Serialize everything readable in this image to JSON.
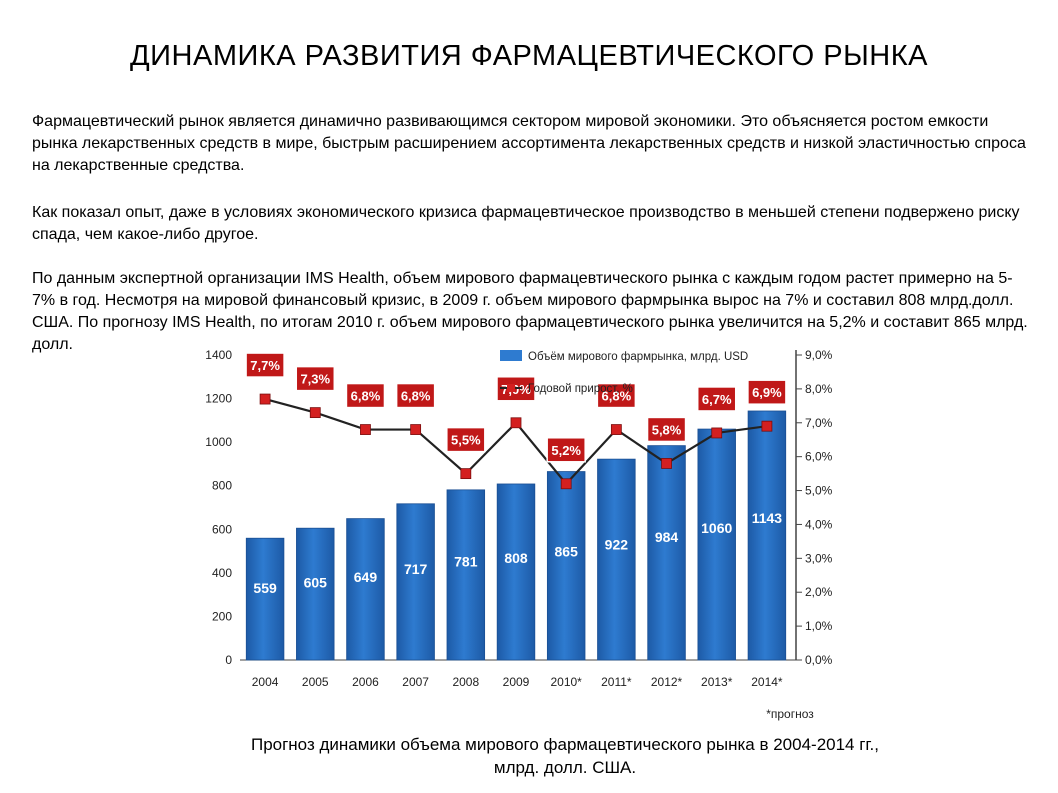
{
  "page": {
    "title": "ДИНАМИКА РАЗВИТИЯ ФАРМАЦЕВТИЧЕСКОГО РЫНКА",
    "paragraphs": [
      "Фармацевтический рынок является динамично развивающимся сектором мировой экономики. Это объясняется ростом емкости рынка лекарственных средств в мире, быстрым расширением ассортимента лекарственных средств и низкой эластичностью спроса на лекарственные средства.",
      "Как показал опыт, даже в условиях экономического кризиса фармацевтическое производство в меньшей степени подвержено риску спада, чем какое-либо другое.",
      "По данным экспертной организации IMS Health, объем мирового фармацевтического рынка с каждым годом растет примерно на 5-7% в год. Несмотря на мировой финансовый кризис, в 2009 г. объем мирового фармрынка вырос на 7% и составил 808 млрд.долл. США. По прогнозу IMS Health, по итогам 2010 г. объем мирового фармацевтического рынка увеличится на 5,2% и составит 865 млрд. долл."
    ],
    "caption_line1": "Прогноз динамики объема мирового фармацевтического рынка в 2004-2014 гг.,",
    "caption_line2": "млрд. долл. США."
  },
  "chart_data": {
    "type": "bar",
    "categories": [
      "2004",
      "2005",
      "2006",
      "2007",
      "2008",
      "2009",
      "2010*",
      "2011*",
      "2012*",
      "2013*",
      "2014*"
    ],
    "series": [
      {
        "name": "Объём мирового фармрынка, млрд. USD",
        "type": "bar",
        "axis": "left",
        "values": [
          559,
          605,
          649,
          717,
          781,
          808,
          865,
          922,
          984,
          1060,
          1143
        ]
      },
      {
        "name": "Годовой прирост, %",
        "type": "line",
        "axis": "right",
        "values": [
          7.7,
          7.3,
          6.8,
          6.8,
          5.5,
          7.0,
          5.2,
          6.8,
          5.8,
          6.7,
          6.9
        ],
        "labels": [
          "7,7%",
          "7,3%",
          "6,8%",
          "6,8%",
          "5,5%",
          "7,0%",
          "5,2%",
          "6,8%",
          "5,8%",
          "6,7%",
          "6,9%"
        ]
      }
    ],
    "ylim": [
      0,
      1400
    ],
    "yticks": [
      "0",
      "200",
      "400",
      "600",
      "800",
      "1000",
      "1200",
      "1400"
    ],
    "y2lim": [
      0,
      9
    ],
    "y2ticks": [
      "0,0%",
      "1,0%",
      "2,0%",
      "3,0%",
      "4,0%",
      "5,0%",
      "6,0%",
      "7,0%",
      "8,0%",
      "9,0%"
    ],
    "footnote": "*прогноз",
    "legend_position": "top-center",
    "grid": false,
    "colors": {
      "bar": "#2e7bd0",
      "bar_dark": "#1d5aa6",
      "line": "#222222",
      "marker": "#d42020",
      "label_box": "#c01818"
    }
  }
}
